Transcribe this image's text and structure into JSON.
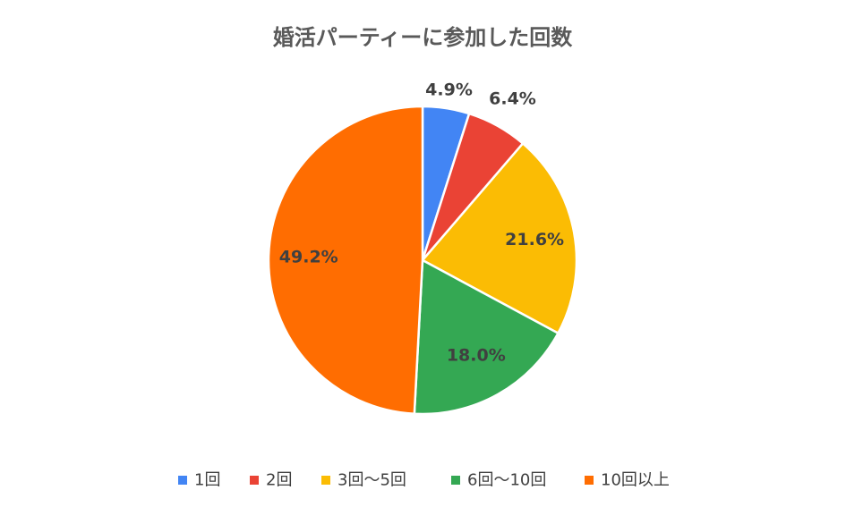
{
  "chart_data": {
    "type": "pie",
    "title": "婚活パーティーに参加した回数",
    "categories": [
      "1回",
      "2回",
      "3回～5回",
      "6回～10回",
      "10回以上"
    ],
    "values": [
      4.9,
      6.4,
      21.6,
      18.0,
      49.2
    ],
    "data_labels": [
      "4.9%",
      "6.4%",
      "21.6%",
      "18.0%",
      "49.2%"
    ],
    "colors": [
      "#4285F4",
      "#EA4335",
      "#FBBC04",
      "#34A853",
      "#FF6D01"
    ],
    "legend_position": "bottom",
    "start_direction": "top",
    "direction": "clockwise"
  }
}
